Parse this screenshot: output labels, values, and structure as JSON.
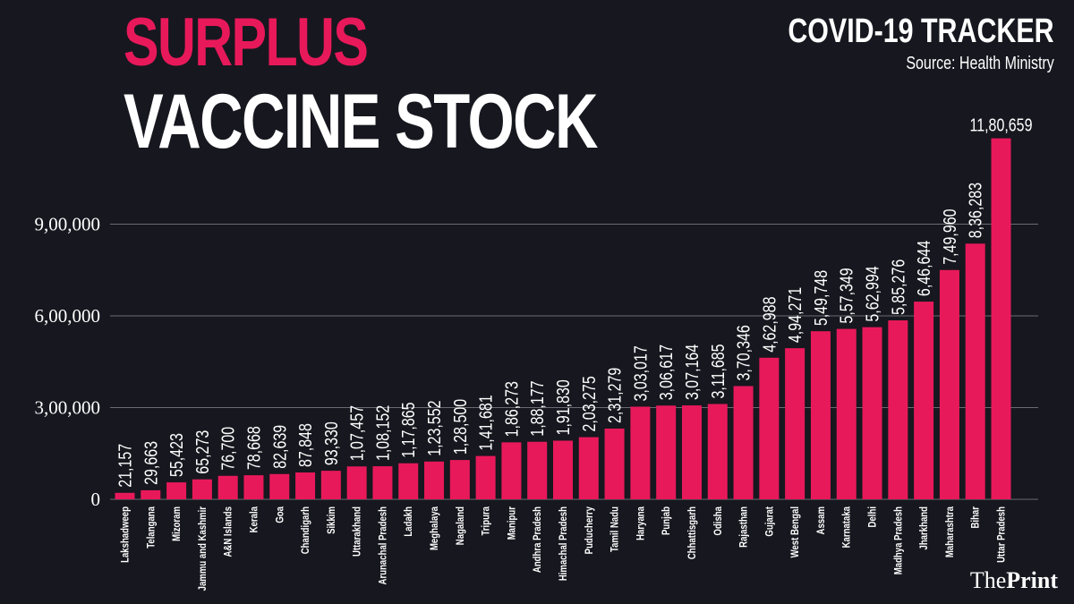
{
  "header": {
    "headline_line1": "SURPLUS",
    "headline_line2": "VACCINE STOCK",
    "tracker": "COVID-19 TRACKER",
    "source": "Source: Health Ministry"
  },
  "brand": {
    "the": "The",
    "print": "Print"
  },
  "colors": {
    "background": "#17171f",
    "bar": "#e8195a",
    "accent": "#e8195a",
    "text": "#ffffff",
    "grid": "#6b6b73"
  },
  "chart_data": {
    "type": "bar",
    "title": "",
    "xlabel": "",
    "ylabel": "",
    "ylim": [
      0,
      1200000
    ],
    "yticks": [
      0,
      300000,
      600000,
      900000
    ],
    "ytick_labels": [
      "0",
      "3,00,000",
      "6,00,000",
      "9,00,000"
    ],
    "grid": true,
    "categories": [
      "Lakshadweep",
      "Telangana",
      "Mizoram",
      "Jammu and Kashmir",
      "A&N Islands",
      "Kerala",
      "Goa",
      "Chandigarh",
      "Sikkim",
      "Uttarakhand",
      "Arunachal Pradesh",
      "Ladakh",
      "Meghalaya",
      "Nagaland",
      "Tripura",
      "Manipur",
      "Andhra Pradesh",
      "Himachal Pradesh",
      "Puducherry",
      "Tamil Nadu",
      "Haryana",
      "Punjab",
      "Chhattisgarh",
      "Odisha",
      "Rajasthan",
      "Gujarat",
      "West Bengal",
      "Assam",
      "Karnataka",
      "Delhi",
      "Madhya Pradesh",
      "Jharkhand",
      "Maharashtra",
      "Bihar",
      "Uttar Pradesh"
    ],
    "values": [
      21157,
      29663,
      55423,
      65273,
      76700,
      78668,
      82639,
      87848,
      93330,
      107457,
      108152,
      117865,
      123552,
      128500,
      141681,
      186273,
      188177,
      191830,
      203275,
      231279,
      303017,
      306617,
      307164,
      311685,
      370346,
      462988,
      494271,
      549748,
      557349,
      562994,
      585276,
      646644,
      749960,
      836283,
      1180659
    ],
    "value_labels": [
      "21,157",
      "29,663",
      "55,423",
      "65,273",
      "76,700",
      "78,668",
      "82,639",
      "87,848",
      "93,330",
      "1,07,457",
      "1,08,152",
      "1,17,865",
      "1,23,552",
      "1,28,500",
      "1,41,681",
      "1,86,273",
      "1,88,177",
      "1,91,830",
      "2,03,275",
      "2,31,279",
      "3,03,017",
      "3,06,617",
      "3,07,164",
      "3,11,685",
      "3,70,346",
      "4,62,988",
      "4,94,271",
      "5,49,748",
      "5,57,349",
      "5,62,994",
      "5,85,276",
      "6,46,644",
      "7,49,960",
      "8,36,283",
      "11,80,659"
    ]
  }
}
